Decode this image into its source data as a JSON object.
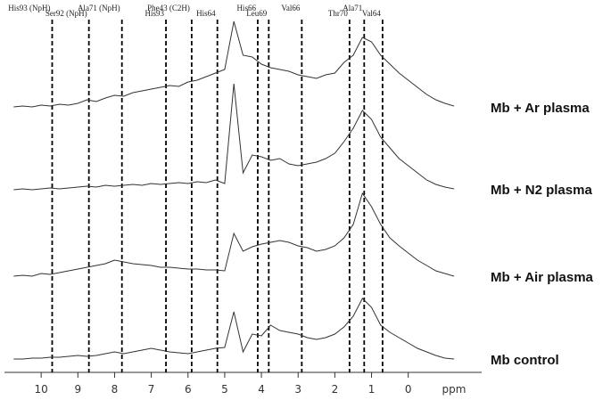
{
  "chart_data": {
    "type": "line",
    "x_label": "ppm",
    "xlim": [
      11,
      -2
    ],
    "xticks": [
      10,
      9,
      8,
      7,
      6,
      5,
      4,
      3,
      2,
      1,
      0
    ],
    "ylim": [
      0,
      130
    ],
    "x": [
      10.75,
      10.5,
      10.25,
      10,
      9.75,
      9.5,
      9.25,
      9,
      8.75,
      8.5,
      8.25,
      8,
      7.75,
      7.5,
      7.25,
      7,
      6.75,
      6.5,
      6.25,
      6,
      5.75,
      5.5,
      5.25,
      5,
      4.75,
      4.5,
      4.25,
      4,
      3.75,
      3.5,
      3.25,
      3,
      2.75,
      2.5,
      2.25,
      2,
      1.75,
      1.5,
      1.25,
      1,
      0.75,
      0.5,
      0.25,
      0,
      -0.25,
      -0.5,
      -0.75,
      -1,
      -1.25
    ],
    "series": [
      {
        "name": "Mb + Ar plasma",
        "color": "#333333",
        "values": [
          2,
          3,
          2,
          4,
          3,
          5,
          4,
          6,
          10,
          8,
          12,
          15,
          14,
          18,
          20,
          22,
          24,
          26,
          25,
          30,
          32,
          36,
          40,
          44,
          98,
          60,
          58,
          50,
          46,
          44,
          42,
          38,
          36,
          34,
          38,
          40,
          52,
          60,
          80,
          75,
          60,
          50,
          40,
          32,
          24,
          16,
          10,
          6,
          3
        ]
      },
      {
        "name": "Mb + N2 plasma",
        "color": "#333333",
        "values": [
          1,
          2,
          1,
          2,
          3,
          2,
          3,
          4,
          5,
          4,
          6,
          5,
          6,
          7,
          6,
          8,
          7,
          8,
          9,
          8,
          10,
          9,
          12,
          8,
          120,
          20,
          40,
          38,
          34,
          36,
          30,
          28,
          30,
          32,
          36,
          42,
          55,
          70,
          90,
          80,
          60,
          48,
          36,
          28,
          20,
          12,
          7,
          4,
          2
        ]
      },
      {
        "name": "Mb + Air plasma",
        "color": "#333333",
        "values": [
          2,
          3,
          2,
          5,
          4,
          6,
          8,
          10,
          12,
          14,
          16,
          20,
          18,
          16,
          15,
          14,
          12,
          12,
          11,
          10,
          10,
          9,
          9,
          8,
          50,
          30,
          35,
          38,
          40,
          42,
          40,
          36,
          34,
          30,
          32,
          36,
          45,
          60,
          95,
          80,
          60,
          45,
          36,
          28,
          20,
          14,
          8,
          5,
          2
        ]
      },
      {
        "name": "Mb control",
        "color": "#333333",
        "values": [
          2,
          2,
          3,
          3,
          4,
          4,
          5,
          6,
          5,
          6,
          8,
          10,
          8,
          10,
          12,
          14,
          12,
          10,
          9,
          8,
          10,
          12,
          14,
          15,
          55,
          10,
          30,
          28,
          40,
          34,
          32,
          30,
          26,
          24,
          26,
          30,
          38,
          50,
          70,
          60,
          40,
          32,
          26,
          20,
          14,
          10,
          6,
          3,
          2
        ]
      }
    ],
    "annotations": [
      {
        "label": "His93 (NpH)",
        "x": 9.7
      },
      {
        "label": "Ser92 (NpH)",
        "x": 8.7
      },
      {
        "label": "Ala71 (NpH)",
        "x": 7.8
      },
      {
        "label": "His93",
        "x": 6.6
      },
      {
        "label": "Phe43 (C2H)",
        "x": 5.9
      },
      {
        "label": "His64",
        "x": 5.2
      },
      {
        "label": "His66",
        "x": 4.1
      },
      {
        "label": "Leu69",
        "x": 3.8
      },
      {
        "label": "Val66",
        "x": 2.9
      },
      {
        "label": "Thr70",
        "x": 1.6
      },
      {
        "label": "Ala71",
        "x": 1.2
      },
      {
        "label": "Val64",
        "x": 0.7
      }
    ]
  }
}
